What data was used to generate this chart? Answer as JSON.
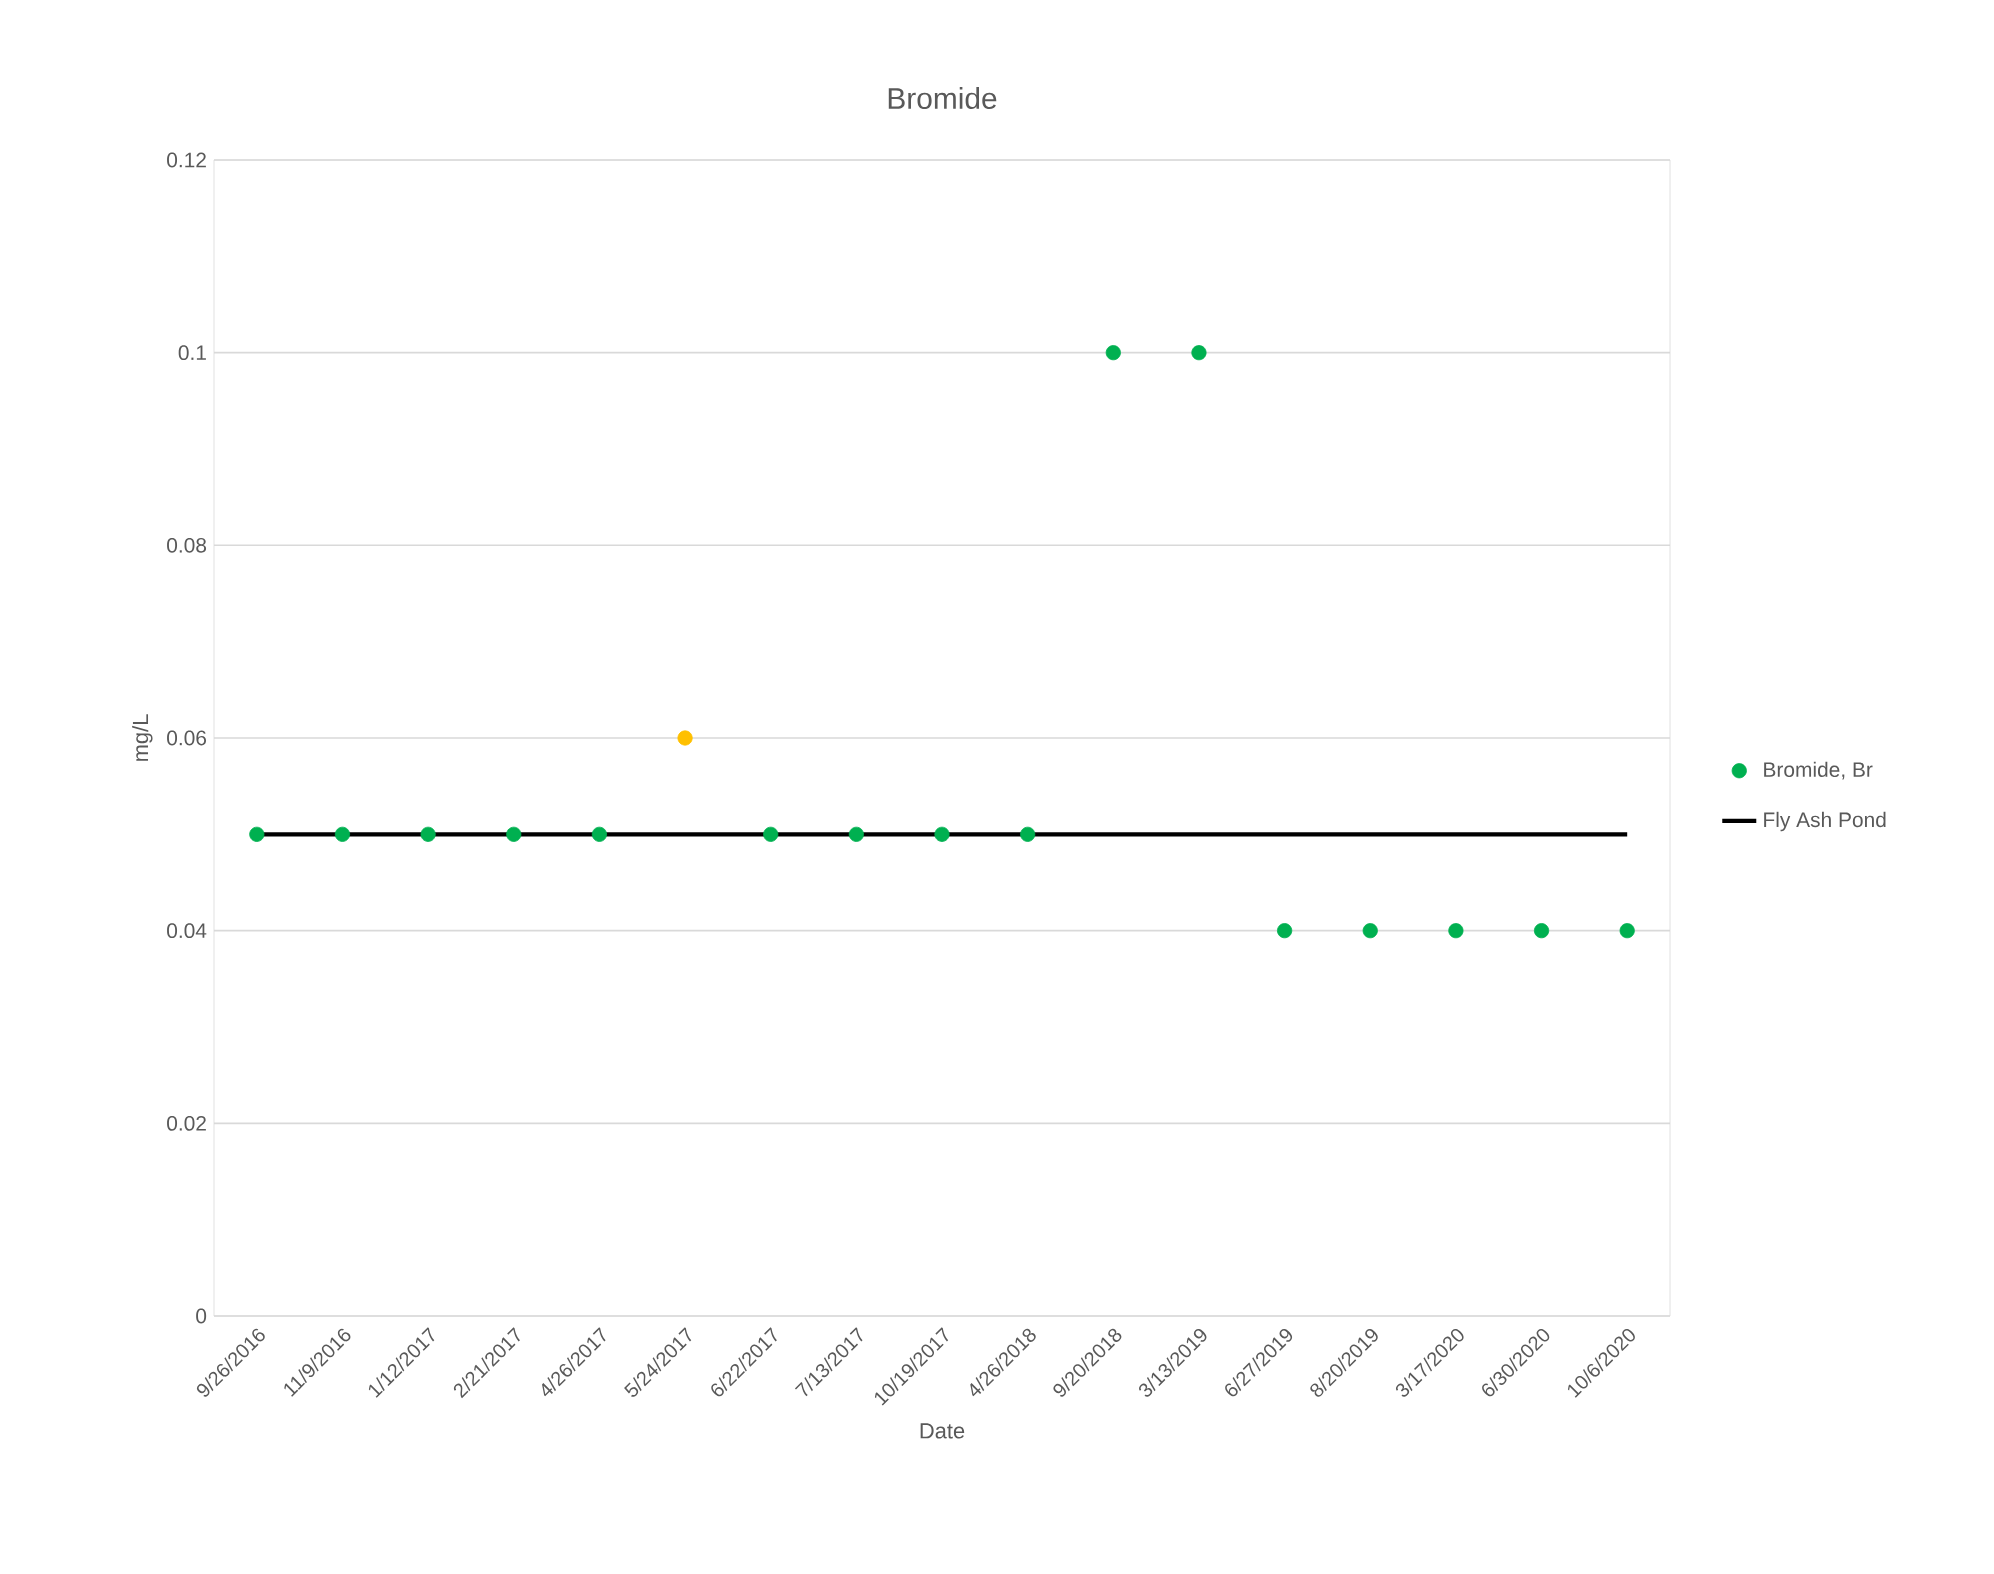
{
  "chart_data": {
    "type": "scatter",
    "title": "Bromide",
    "xlabel": "Date",
    "ylabel": "mg/L",
    "categories": [
      "9/26/2016",
      "11/9/2016",
      "1/12/2017",
      "2/21/2017",
      "4/26/2017",
      "5/24/2017",
      "6/22/2017",
      "7/13/2017",
      "10/19/2017",
      "4/26/2018",
      "9/20/2018",
      "3/13/2019",
      "6/27/2019",
      "8/20/2019",
      "3/17/2020",
      "6/30/2020",
      "10/6/2020"
    ],
    "series": [
      {
        "name": "Bromide, Br",
        "color": "#00b050",
        "marker": "circle",
        "values": [
          0.05,
          0.05,
          0.05,
          0.05,
          0.05,
          0.06,
          0.05,
          0.05,
          0.05,
          0.05,
          0.1,
          0.1,
          0.04,
          0.04,
          0.04,
          0.04,
          0.04
        ],
        "colors": [
          "#00b050",
          "#00b050",
          "#00b050",
          "#00b050",
          "#00b050",
          "#ffc000",
          "#00b050",
          "#00b050",
          "#00b050",
          "#00b050",
          "#00b050",
          "#00b050",
          "#00b050",
          "#00b050",
          "#00b050",
          "#00b050",
          "#00b050"
        ]
      },
      {
        "name": "Fly Ash Pond",
        "type": "line",
        "color": "#000000",
        "line_style": "solid",
        "values": [
          0.05,
          0.05,
          0.05,
          0.05,
          0.05,
          0.05,
          0.05,
          0.05,
          0.05,
          0.05,
          0.05,
          0.05,
          0.05,
          0.05,
          0.05,
          0.05,
          0.05
        ]
      }
    ],
    "ylim": [
      0,
      0.12
    ],
    "yticks": [
      0,
      0.02,
      0.04,
      0.06,
      0.08,
      0.1,
      0.12
    ],
    "grid": "y",
    "legend": "right"
  }
}
